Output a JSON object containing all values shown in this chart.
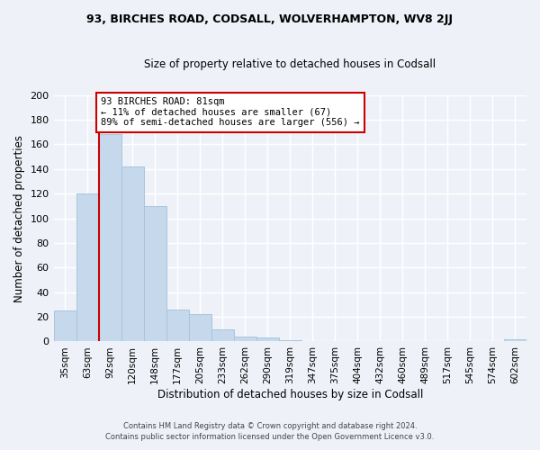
{
  "title1": "93, BIRCHES ROAD, CODSALL, WOLVERHAMPTON, WV8 2JJ",
  "title2": "Size of property relative to detached houses in Codsall",
  "xlabel": "Distribution of detached houses by size in Codsall",
  "ylabel": "Number of detached properties",
  "bar_color": "#c6d9ec",
  "bar_edge_color": "#a8c4db",
  "bins": [
    "35sqm",
    "63sqm",
    "92sqm",
    "120sqm",
    "148sqm",
    "177sqm",
    "205sqm",
    "233sqm",
    "262sqm",
    "290sqm",
    "319sqm",
    "347sqm",
    "375sqm",
    "404sqm",
    "432sqm",
    "460sqm",
    "489sqm",
    "517sqm",
    "545sqm",
    "574sqm",
    "602sqm"
  ],
  "values": [
    25,
    120,
    168,
    142,
    110,
    26,
    22,
    10,
    4,
    3,
    1,
    0,
    0,
    0,
    0,
    0,
    0,
    0,
    0,
    0,
    2
  ],
  "property_line_color": "#cc0000",
  "annotation_text": "93 BIRCHES ROAD: 81sqm\n← 11% of detached houses are smaller (67)\n89% of semi-detached houses are larger (556) →",
  "annotation_box_color": "#ffffff",
  "annotation_box_edge": "#cc0000",
  "ylim": [
    0,
    200
  ],
  "yticks": [
    0,
    20,
    40,
    60,
    80,
    100,
    120,
    140,
    160,
    180,
    200
  ],
  "footer1": "Contains HM Land Registry data © Crown copyright and database right 2024.",
  "footer2": "Contains public sector information licensed under the Open Government Licence v3.0.",
  "background_color": "#eef2f8"
}
